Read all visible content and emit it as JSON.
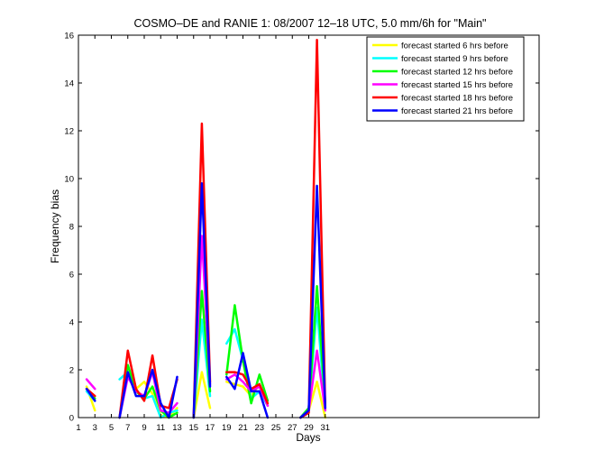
{
  "chart_data": {
    "type": "line",
    "title": "COSMO–DE and RANIE 1: 08/2007 12–18 UTC, 5.0 mm/6h for \"Main\"",
    "xlabel": "Days",
    "ylabel": "Frequency bias",
    "xlim": [
      1,
      57
    ],
    "ylim": [
      0,
      16
    ],
    "xticks": [
      1,
      3,
      5,
      7,
      9,
      11,
      13,
      15,
      17,
      19,
      21,
      23,
      25,
      27,
      29,
      31
    ],
    "yticks": [
      0,
      2,
      4,
      6,
      8,
      10,
      12,
      14,
      16
    ],
    "legend_position": "top-right",
    "grid": false,
    "series": [
      {
        "name": "forecast started 6 hrs before",
        "color": "#ffff00",
        "x": [
          2,
          3,
          6,
          7,
          8,
          9,
          10,
          11,
          12,
          13,
          15,
          16,
          17,
          19,
          20,
          21,
          22,
          23,
          24,
          28,
          29,
          30,
          31
        ],
        "y": [
          1.3,
          0.3,
          0.0,
          1.8,
          1.2,
          1.5,
          1.0,
          0.1,
          0.0,
          0.4,
          0.0,
          1.9,
          0.4,
          1.5,
          1.4,
          1.3,
          0.9,
          1.4,
          0.5,
          0.0,
          0.3,
          1.5,
          0.0
        ]
      },
      {
        "name": "forecast started 9 hrs before",
        "color": "#00ffff",
        "x": [
          2,
          3,
          6,
          7,
          8,
          9,
          10,
          11,
          12,
          13,
          15,
          16,
          17,
          19,
          20,
          21,
          22,
          23,
          24,
          28,
          29,
          30,
          31
        ],
        "y": [
          1.1,
          0.7,
          1.6,
          1.9,
          1.1,
          0.8,
          0.9,
          0.0,
          0.2,
          0.3,
          0.0,
          4.1,
          0.9,
          3.1,
          3.7,
          2.4,
          0.8,
          1.1,
          0.5,
          0.0,
          0.4,
          4.6,
          0.3
        ]
      },
      {
        "name": "forecast started 12 hrs before",
        "color": "#00ff00",
        "x": [
          2,
          3,
          6,
          7,
          8,
          9,
          10,
          11,
          12,
          13,
          15,
          16,
          17,
          19,
          20,
          21,
          22,
          23,
          24,
          28,
          29,
          30,
          31
        ],
        "y": [
          1.2,
          0.8,
          0.0,
          2.2,
          1.1,
          0.8,
          1.3,
          0.3,
          0.0,
          0.2,
          0.0,
          5.3,
          1.1,
          1.8,
          4.7,
          2.4,
          0.6,
          1.8,
          0.7,
          0.0,
          0.4,
          5.5,
          0.6
        ]
      },
      {
        "name": "forecast started 15 hrs before",
        "color": "#ff00ff",
        "x": [
          2,
          3,
          6,
          7,
          8,
          9,
          10,
          11,
          12,
          13,
          15,
          16,
          17,
          19,
          20,
          21,
          22,
          23,
          24,
          28,
          29,
          30,
          31
        ],
        "y": [
          1.6,
          1.2,
          0.0,
          1.7,
          1.1,
          0.9,
          1.9,
          0.3,
          0.2,
          0.6,
          0.0,
          7.6,
          1.4,
          1.6,
          1.8,
          1.5,
          1.1,
          1.3,
          0.5,
          0.0,
          0.3,
          2.8,
          0.3
        ]
      },
      {
        "name": "forecast started 18 hrs before",
        "color": "#ff0000",
        "x": [
          2,
          3,
          6,
          7,
          8,
          9,
          10,
          11,
          12,
          13,
          15,
          16,
          17,
          19,
          20,
          21,
          22,
          23,
          24,
          28,
          29,
          30,
          31
        ],
        "y": [
          1.2,
          0.9,
          0.0,
          2.8,
          1.2,
          0.7,
          2.6,
          0.5,
          0.4,
          1.6,
          0.0,
          12.3,
          1.5,
          1.9,
          1.9,
          1.8,
          1.2,
          1.4,
          0.6,
          0.0,
          0.2,
          15.8,
          0.4
        ]
      },
      {
        "name": "forecast started 21 hrs before",
        "color": "#0000ff",
        "x": [
          2,
          3,
          6,
          7,
          8,
          9,
          10,
          11,
          12,
          13,
          15,
          16,
          17,
          19,
          20,
          21,
          22,
          23,
          24,
          28,
          29,
          30,
          31
        ],
        "y": [
          1.2,
          0.7,
          0.0,
          1.9,
          0.9,
          0.9,
          2.0,
          0.6,
          0.0,
          1.7,
          0.0,
          9.8,
          1.3,
          1.7,
          1.2,
          2.7,
          1.1,
          1.1,
          0.0,
          0.0,
          0.3,
          9.7,
          0.4
        ]
      }
    ]
  }
}
